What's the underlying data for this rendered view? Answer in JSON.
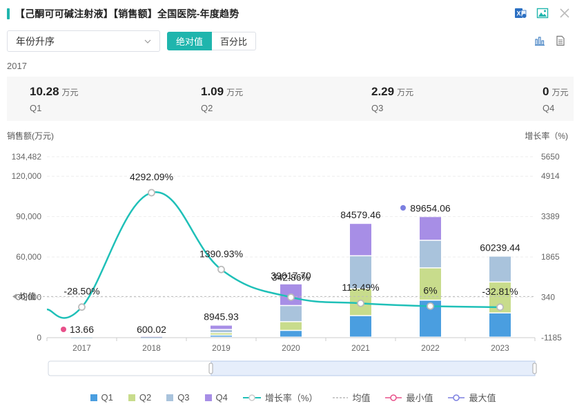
{
  "header": {
    "title": "【己酮可可碱注射液】【销售额】全国医院-年度趋势",
    "icons": [
      "excel-icon",
      "image-icon",
      "close-icon"
    ]
  },
  "controls": {
    "sort_select": "年份升序",
    "seg_absolute": "绝对值",
    "seg_percent": "百分比",
    "view_icons": [
      "bar-chart-icon",
      "document-icon"
    ]
  },
  "selected_year": "2017",
  "kpis": [
    {
      "value": "10.28",
      "unit": "万元",
      "quarter": "Q1"
    },
    {
      "value": "1.09",
      "unit": "万元",
      "quarter": "Q2"
    },
    {
      "value": "2.29",
      "unit": "万元",
      "quarter": "Q3"
    },
    {
      "value": "0",
      "unit": "万元",
      "quarter": "Q4"
    }
  ],
  "chart_data": {
    "type": "bar",
    "stacked": true,
    "ylabel_left": "销售额(万元)",
    "ylabel_right": "增长率（%)",
    "left_ticks": [
      "134,482",
      "120,000",
      "90,000",
      "60,000",
      "30,000",
      "0"
    ],
    "left_tick_values": [
      134482,
      120000,
      90000,
      60000,
      30000,
      0
    ],
    "right_ticks": [
      "5650",
      "4914",
      "3389",
      "1865",
      "340",
      "-1185"
    ],
    "right_tick_values": [
      5650,
      4914,
      3389,
      1865,
      340,
      -1185
    ],
    "ylim_left": [
      0,
      134482
    ],
    "ylim_right": [
      -1185,
      5650
    ],
    "categories": [
      "2017",
      "2018",
      "2019",
      "2020",
      "2021",
      "2022",
      "2023"
    ],
    "series": [
      {
        "name": "Q1",
        "color": "#4a9ee0",
        "values": [
          10.28,
          150,
          1500,
          5000,
          16000,
          27500,
          18000
        ]
      },
      {
        "name": "Q2",
        "color": "#c8dc8c",
        "values": [
          1.09,
          150,
          1800,
          6500,
          20000,
          24000,
          23000
        ]
      },
      {
        "name": "Q3",
        "color": "#a9c3dc",
        "values": [
          2.29,
          150,
          2400,
          12000,
          24500,
          20500,
          19239.44
        ]
      },
      {
        "name": "Q4",
        "color": "#a78ee6",
        "values": [
          0,
          150.02,
          3245.93,
          16117.7,
          24079.46,
          17654.06,
          0
        ]
      }
    ],
    "totals": [
      13.66,
      600.02,
      8945.93,
      39617.7,
      84579.46,
      89654.06,
      60239.44
    ],
    "total_labels": [
      "13.66",
      "600.02",
      "8945.93",
      "39617.70",
      "84579.46",
      "89654.06",
      "60239.44"
    ],
    "growth": {
      "name": "增长率（%）",
      "color": "#1fc0b8",
      "values": [
        -28.5,
        4292.09,
        1390.93,
        342.86,
        113.49,
        6,
        -32.81
      ],
      "labels": [
        "-28.50%",
        "4292.09%",
        "1390.93%",
        "342.86%",
        "113.49%",
        "6%",
        "-32.81%"
      ]
    },
    "average": {
      "label": "均值",
      "value": 240
    }
  },
  "legend": {
    "q1": "Q1",
    "q2": "Q2",
    "q3": "Q3",
    "q4": "Q4",
    "growth": "增长率（%）",
    "avg": "均值",
    "min": "最小值",
    "max": "最大值"
  }
}
